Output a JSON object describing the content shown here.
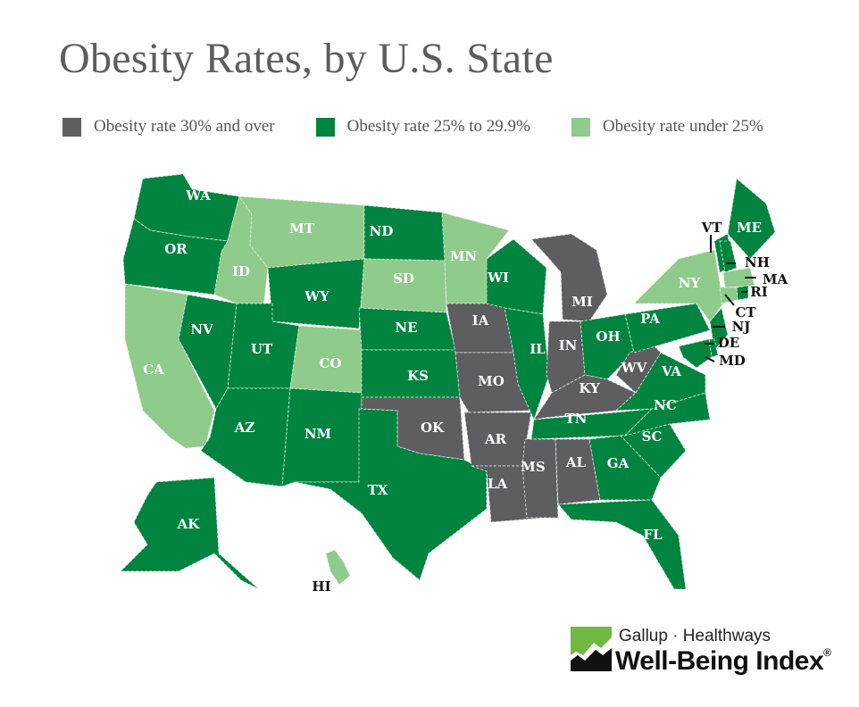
{
  "title": "Obesity Rates, by U.S. State",
  "colors": {
    "high": "#5e5e61",
    "mid": "#00843f",
    "low": "#8fcb8a",
    "border": "#cfe5cf"
  },
  "legend": [
    {
      "key": "high",
      "label": "Obesity rate 30% and over"
    },
    {
      "key": "mid",
      "label": "Obesity rate 25% to 29.9%"
    },
    {
      "key": "low",
      "label": "Obesity rate under 25%"
    }
  ],
  "categories": {
    "high": "30% and over",
    "mid": "25% to 29.9%",
    "low": "under 25%"
  },
  "states": [
    {
      "abbr": "WA",
      "category": "mid"
    },
    {
      "abbr": "OR",
      "category": "mid"
    },
    {
      "abbr": "CA",
      "category": "low"
    },
    {
      "abbr": "NV",
      "category": "mid"
    },
    {
      "abbr": "ID",
      "category": "low"
    },
    {
      "abbr": "MT",
      "category": "low"
    },
    {
      "abbr": "WY",
      "category": "mid"
    },
    {
      "abbr": "UT",
      "category": "mid"
    },
    {
      "abbr": "CO",
      "category": "low"
    },
    {
      "abbr": "AZ",
      "category": "mid"
    },
    {
      "abbr": "NM",
      "category": "mid"
    },
    {
      "abbr": "ND",
      "category": "mid"
    },
    {
      "abbr": "SD",
      "category": "low"
    },
    {
      "abbr": "NE",
      "category": "mid"
    },
    {
      "abbr": "KS",
      "category": "mid"
    },
    {
      "abbr": "OK",
      "category": "high"
    },
    {
      "abbr": "TX",
      "category": "mid"
    },
    {
      "abbr": "MN",
      "category": "low"
    },
    {
      "abbr": "IA",
      "category": "high"
    },
    {
      "abbr": "MO",
      "category": "high"
    },
    {
      "abbr": "AR",
      "category": "high"
    },
    {
      "abbr": "LA",
      "category": "high"
    },
    {
      "abbr": "WI",
      "category": "mid"
    },
    {
      "abbr": "IL",
      "category": "mid"
    },
    {
      "abbr": "MI",
      "category": "high"
    },
    {
      "abbr": "IN",
      "category": "high"
    },
    {
      "abbr": "OH",
      "category": "mid"
    },
    {
      "abbr": "KY",
      "category": "high"
    },
    {
      "abbr": "TN",
      "category": "mid"
    },
    {
      "abbr": "MS",
      "category": "high"
    },
    {
      "abbr": "AL",
      "category": "high"
    },
    {
      "abbr": "GA",
      "category": "mid"
    },
    {
      "abbr": "FL",
      "category": "mid"
    },
    {
      "abbr": "SC",
      "category": "mid"
    },
    {
      "abbr": "NC",
      "category": "mid"
    },
    {
      "abbr": "VA",
      "category": "mid"
    },
    {
      "abbr": "WV",
      "category": "high"
    },
    {
      "abbr": "PA",
      "category": "mid"
    },
    {
      "abbr": "NY",
      "category": "low"
    },
    {
      "abbr": "VT",
      "category": "mid"
    },
    {
      "abbr": "ME",
      "category": "mid"
    },
    {
      "abbr": "NH",
      "category": "mid"
    },
    {
      "abbr": "MA",
      "category": "low"
    },
    {
      "abbr": "RI",
      "category": "mid"
    },
    {
      "abbr": "CT",
      "category": "low"
    },
    {
      "abbr": "NJ",
      "category": "mid"
    },
    {
      "abbr": "DE",
      "category": "mid"
    },
    {
      "abbr": "MD",
      "category": "mid"
    },
    {
      "abbr": "AK",
      "category": "mid"
    },
    {
      "abbr": "HI",
      "category": "low"
    }
  ],
  "logo": {
    "line1": "Gallup · Healthways",
    "line2": "Well-Being Index",
    "mark": "®"
  }
}
